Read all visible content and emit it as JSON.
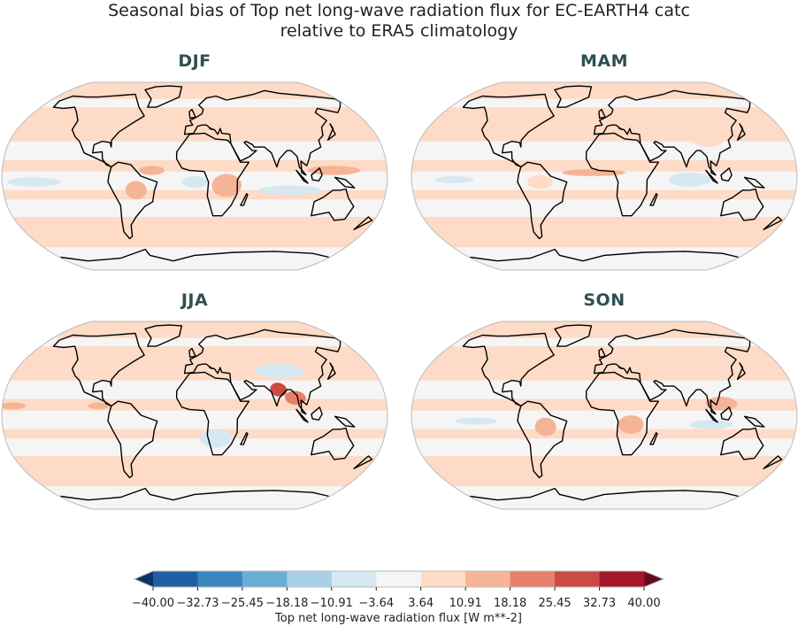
{
  "title_line1": "Seasonal bias of Top net long-wave radiation flux for EC-EARTH4 catc",
  "title_line2": "relative to ERA5 climatology",
  "panels": [
    {
      "season": "DJF"
    },
    {
      "season": "MAM"
    },
    {
      "season": "JJA"
    },
    {
      "season": "SON"
    }
  ],
  "colorbar": {
    "label": "Top net long-wave radiation flux [W m**-2]",
    "ticks": [
      "−40.00",
      "−32.73",
      "−25.45",
      "−18.18",
      "−10.91",
      "−3.64",
      "3.64",
      "10.91",
      "18.18",
      "25.45",
      "32.73",
      "40.00"
    ],
    "colors": [
      "#1f5fa6",
      "#3a87c0",
      "#6aaed6",
      "#a8d0e6",
      "#d6e8f1",
      "#f5f5f5",
      "#fddbc7",
      "#f6b497",
      "#e6806a",
      "#cc4a43",
      "#a3172b"
    ],
    "under_color": "#0a3564",
    "over_color": "#670a1f",
    "extend": "both"
  },
  "colors": {
    "land_outline": "#000000",
    "map_frame": "#bbbbbb",
    "neutral": "#f5f5f5",
    "light_pos": "#fddbc7",
    "light_neg": "#d6e8f1"
  }
}
